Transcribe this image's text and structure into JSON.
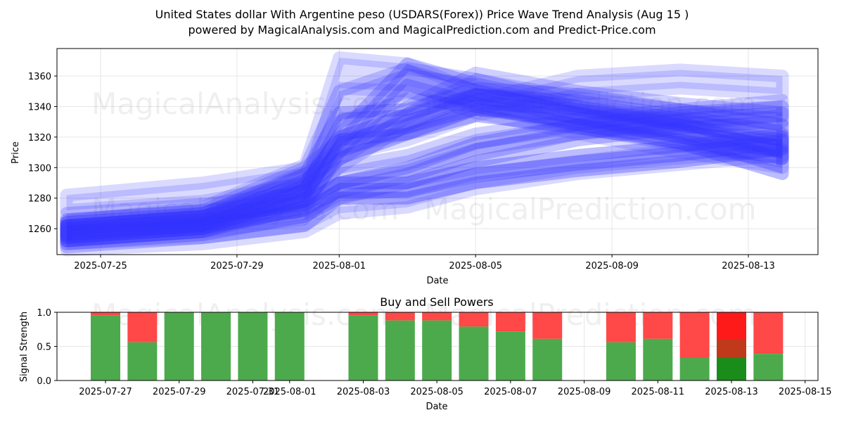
{
  "header": {
    "title_line1": "United States dollar With Argentine peso (USDARS(Forex)) Price Wave Trend Analysis (Aug 15 )",
    "title_line2": "powered by MagicalAnalysis.com and MagicalPrediction.com and Predict-Price.com"
  },
  "watermarks": [
    "MagicalAnalysis.com",
    "MagicalPrediction.com"
  ],
  "colors": {
    "wave": "#3333ff",
    "buy": "#4caa4c",
    "sell": "#ff4848",
    "buy_strong": "#1a8c1a",
    "sell_strong": "#ff1a1a"
  },
  "chart_data": [
    {
      "type": "area",
      "xlabel": "Date",
      "ylabel": "Price",
      "ylim": [
        1243,
        1378
      ],
      "y_ticks": [
        1260,
        1280,
        1300,
        1320,
        1340,
        1360
      ],
      "x_ticks": [
        "2025-07-25",
        "2025-07-29",
        "2025-08-01",
        "2025-08-05",
        "2025-08-09",
        "2025-08-13"
      ],
      "grid": true,
      "x_dates": [
        "2025-07-24",
        "2025-07-28",
        "2025-07-31",
        "2025-08-01",
        "2025-08-03",
        "2025-08-05",
        "2025-08-08",
        "2025-08-11",
        "2025-08-14"
      ],
      "bands": [
        {
          "upper": [
            1282,
            1290,
            1300,
            1318,
            1328,
            1344,
            1360,
            1364,
            1360
          ],
          "lower": [
            1272,
            1278,
            1290,
            1308,
            1318,
            1334,
            1348,
            1352,
            1348
          ]
        },
        {
          "upper": [
            1270,
            1276,
            1284,
            1300,
            1308,
            1322,
            1332,
            1338,
            1344
          ],
          "lower": [
            1256,
            1262,
            1272,
            1290,
            1298,
            1312,
            1322,
            1328,
            1334
          ]
        },
        {
          "upper": [
            1260,
            1266,
            1276,
            1290,
            1300,
            1316,
            1328,
            1336,
            1340
          ],
          "lower": [
            1248,
            1254,
            1262,
            1280,
            1290,
            1304,
            1318,
            1326,
            1330
          ]
        },
        {
          "upper": [
            1262,
            1268,
            1278,
            1290,
            1290,
            1300,
            1308,
            1314,
            1322
          ],
          "lower": [
            1250,
            1256,
            1268,
            1280,
            1280,
            1290,
            1298,
            1304,
            1312
          ]
        },
        {
          "upper": [
            1258,
            1262,
            1270,
            1282,
            1285,
            1296,
            1304,
            1312,
            1320
          ],
          "lower": [
            1246,
            1250,
            1258,
            1270,
            1274,
            1286,
            1296,
            1302,
            1308
          ]
        },
        {
          "upper": [
            1266,
            1272,
            1300,
            1350,
            1365,
            1358,
            1342,
            1332,
            1320
          ],
          "lower": [
            1256,
            1262,
            1286,
            1330,
            1345,
            1340,
            1328,
            1318,
            1306
          ]
        },
        {
          "upper": [
            1264,
            1270,
            1296,
            1336,
            1338,
            1352,
            1348,
            1338,
            1328
          ],
          "lower": [
            1254,
            1260,
            1282,
            1318,
            1322,
            1338,
            1334,
            1324,
            1314
          ]
        },
        {
          "upper": [
            1262,
            1268,
            1290,
            1320,
            1335,
            1348,
            1340,
            1330,
            1310
          ],
          "lower": [
            1252,
            1258,
            1278,
            1306,
            1322,
            1334,
            1326,
            1316,
            1296
          ]
        },
        {
          "upper": [
            1265,
            1274,
            1302,
            1372,
            1368,
            1350,
            1335,
            1322,
            1312
          ],
          "lower": [
            1255,
            1262,
            1288,
            1352,
            1350,
            1336,
            1322,
            1310,
            1300
          ]
        },
        {
          "upper": [
            1264,
            1270,
            1292,
            1310,
            1340,
            1362,
            1350,
            1342,
            1336
          ],
          "lower": [
            1254,
            1260,
            1280,
            1300,
            1328,
            1348,
            1338,
            1330,
            1324
          ]
        },
        {
          "upper": [
            1262,
            1268,
            1286,
            1322,
            1368,
            1355,
            1340,
            1328,
            1318
          ],
          "lower": [
            1252,
            1258,
            1274,
            1310,
            1354,
            1342,
            1328,
            1316,
            1306
          ]
        }
      ]
    },
    {
      "type": "bar",
      "title": "Buy and Sell Powers",
      "xlabel": "Date",
      "ylabel": "Signal Strength",
      "ylim": [
        0,
        1
      ],
      "y_ticks": [
        "0.0",
        "0.5",
        "1.0"
      ],
      "x_ticks": [
        "2025-07-27",
        "2025-07-29",
        "2025-07-31",
        "2025-08-01",
        "2025-08-03",
        "2025-08-05",
        "2025-08-07",
        "2025-08-09",
        "2025-08-11",
        "2025-08-13",
        "2025-08-15"
      ],
      "grid": true,
      "bars": [
        {
          "date": "2025-07-27",
          "buy": 0.95
        },
        {
          "date": "2025-07-28",
          "buy": 0.56
        },
        {
          "date": "2025-07-29",
          "buy": 1.0
        },
        {
          "date": "2025-07-30",
          "buy": 1.0
        },
        {
          "date": "2025-07-31",
          "buy": 1.0
        },
        {
          "date": "2025-08-01",
          "buy": 1.0
        },
        {
          "date": "2025-08-03",
          "buy": 0.95
        },
        {
          "date": "2025-08-04",
          "buy": 0.88
        },
        {
          "date": "2025-08-05",
          "buy": 0.88
        },
        {
          "date": "2025-08-06",
          "buy": 0.79
        },
        {
          "date": "2025-08-07",
          "buy": 0.72
        },
        {
          "date": "2025-08-08",
          "buy": 0.61
        },
        {
          "date": "2025-08-10",
          "buy": 0.56
        },
        {
          "date": "2025-08-11",
          "buy": 0.61
        },
        {
          "date": "2025-08-12",
          "buy": 0.33
        },
        {
          "date": "2025-08-13",
          "buy": 0.33,
          "strong": true
        },
        {
          "date": "2025-08-14",
          "buy": 0.39
        }
      ]
    }
  ]
}
